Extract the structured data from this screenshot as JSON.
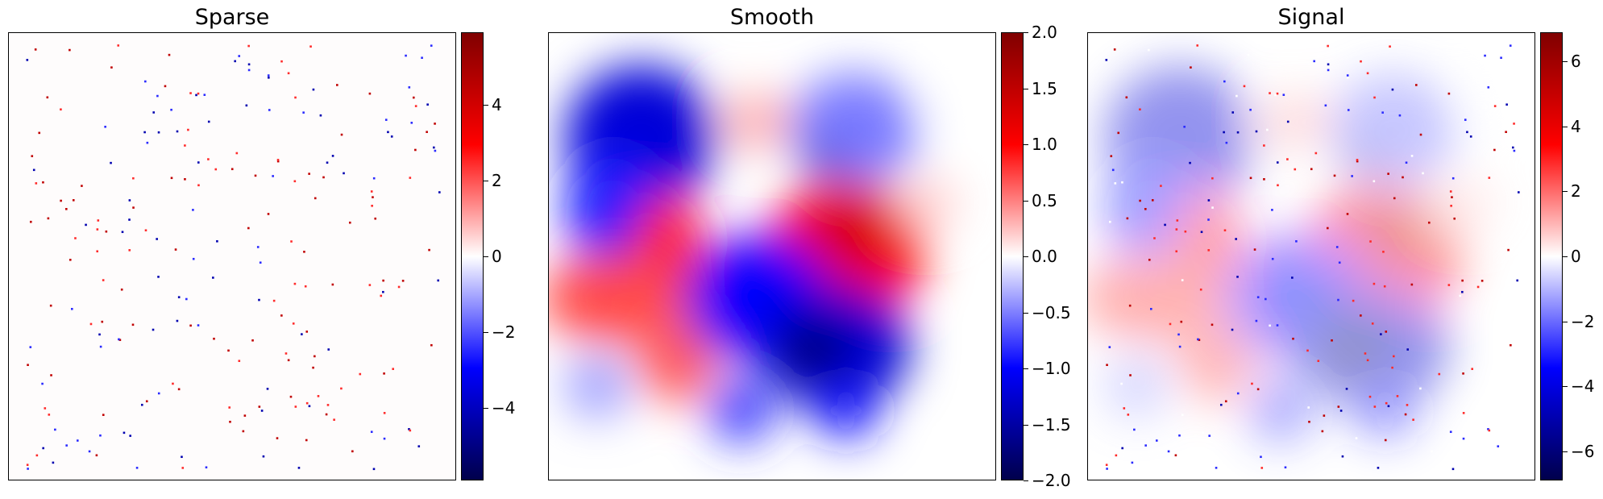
{
  "colormap": {
    "name": "seismic",
    "stops": [
      "#00004c",
      "#0000ff",
      "#ffffff",
      "#ff0000",
      "#800000"
    ]
  },
  "chart_data": [
    {
      "type": "heatmap",
      "title": "Sparse",
      "description": "mostly ~0 background with scattered isolated single-pixel spikes (positive red, negative blue)",
      "colorbar": {
        "vmin": -5.9,
        "vmax": 5.9,
        "ticks": [
          4,
          2,
          0,
          -2,
          -4
        ],
        "tick_labels": [
          "4",
          "2",
          "0",
          "−2",
          "−4"
        ]
      },
      "axes": {
        "ticks_visible": false,
        "grid": false
      }
    },
    {
      "type": "heatmap",
      "title": "Smooth",
      "description": "smooth blob field; red blobs right-center and left-center, deep blue blobs top-left and bottom-center",
      "colorbar": {
        "vmin": -2.0,
        "vmax": 2.0,
        "ticks": [
          2.0,
          1.5,
          1.0,
          0.5,
          0.0,
          -0.5,
          -1.0,
          -1.5,
          -2.0
        ],
        "tick_labels": [
          "2.0",
          "1.5",
          "1.0",
          "0.5",
          "0.0",
          "−0.5",
          "−1.0",
          "−1.5",
          "−2.0"
        ]
      },
      "axes": {
        "ticks_visible": false,
        "grid": false
      }
    },
    {
      "type": "heatmap",
      "title": "Signal",
      "description": "sum of smooth field (faded) plus sparse spikes",
      "colorbar": {
        "vmin": -6.9,
        "vmax": 6.9,
        "ticks": [
          6,
          4,
          2,
          0,
          -2,
          -4,
          -6
        ],
        "tick_labels": [
          "6",
          "4",
          "2",
          "0",
          "−2",
          "−4",
          "−6"
        ]
      },
      "axes": {
        "ticks_visible": false,
        "grid": false
      }
    }
  ]
}
